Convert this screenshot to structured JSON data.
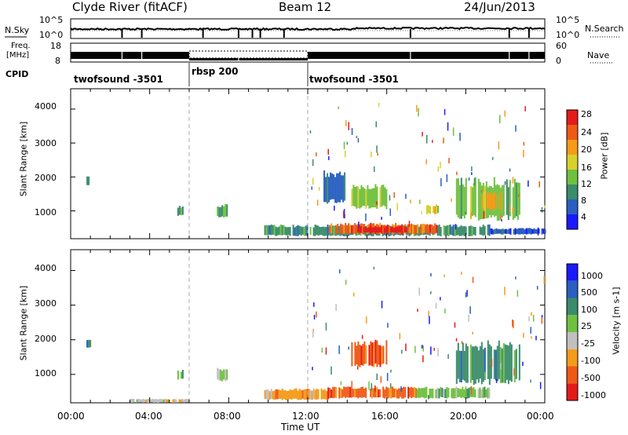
{
  "header": {
    "station": "Clyde River (fitACF)",
    "beam": "Beam 12",
    "date": "24/Jun/2013"
  },
  "colors": {
    "power_scale": [
      "#1a1aff",
      "#2a5fc0",
      "#3a8c6a",
      "#70c040",
      "#d7d12a",
      "#f59b1a",
      "#ee5a16",
      "#e41b1b"
    ],
    "velocity_scale": [
      "#e41b1b",
      "#ee5a16",
      "#f59b1a",
      "#c0c0c0",
      "#70c040",
      "#3a8c6a",
      "#2a5fc0",
      "#1a1aff"
    ]
  },
  "top_panels": {
    "nsky_label": "N.Sky",
    "nsearch_label": "N.Search",
    "freq_label_1": "Freq.",
    "freq_label_2": "[MHz]",
    "nave_label": "Nave",
    "cpid_label": "CPID",
    "left_ticks_noise": [
      "10^5",
      "10^0"
    ],
    "right_ticks_noise": [
      "10^5",
      "10^0"
    ],
    "left_ticks_freq": [
      "18",
      "8"
    ],
    "right_ticks_nave": [
      "60",
      "0"
    ],
    "cpid_segments": [
      {
        "name": "twofsound -3501",
        "start_h": 0,
        "end_h": 6
      },
      {
        "name": "rbsp 200",
        "start_h": 6,
        "end_h": 12
      },
      {
        "name": "twofsound -3501",
        "start_h": 12,
        "end_h": 24
      }
    ]
  },
  "chart_data": [
    {
      "type": "heatmap",
      "name": "Power",
      "ylabel": "Slant Range [km]",
      "colorbar_label": "Power [dB]",
      "colorbar_ticks": [
        "28",
        "24",
        "20",
        "16",
        "12",
        "8",
        "4"
      ],
      "xlim": [
        0,
        24
      ],
      "ylim": [
        180,
        4600
      ],
      "y_ticks": [
        "4000",
        "3000",
        "2000",
        "1000"
      ],
      "features": [
        {
          "t0": 9.8,
          "t1": 21.2,
          "r0": 250,
          "r1": 600,
          "level": 2
        },
        {
          "t0": 13.0,
          "t1": 18.5,
          "r0": 300,
          "r1": 650,
          "level": 6
        },
        {
          "t0": 14.5,
          "t1": 17.0,
          "r0": 350,
          "r1": 550,
          "level": 7
        },
        {
          "t0": 21.2,
          "t1": 24.0,
          "r0": 300,
          "r1": 500,
          "level": 1
        },
        {
          "t0": 0.8,
          "t1": 1.0,
          "r0": 1750,
          "r1": 2050,
          "level": 2
        },
        {
          "t0": 5.4,
          "t1": 5.7,
          "r0": 850,
          "r1": 1150,
          "level": 2
        },
        {
          "t0": 7.4,
          "t1": 7.9,
          "r0": 800,
          "r1": 1200,
          "level": 2
        },
        {
          "t0": 12.8,
          "t1": 13.9,
          "r0": 1200,
          "r1": 2200,
          "level": 1
        },
        {
          "t0": 14.2,
          "t1": 16.0,
          "r0": 1050,
          "r1": 1800,
          "level": 3
        },
        {
          "t0": 18.0,
          "t1": 18.6,
          "r0": 900,
          "r1": 1200,
          "level": 4
        },
        {
          "t0": 19.5,
          "t1": 22.7,
          "r0": 700,
          "r1": 2000,
          "level": 3
        },
        {
          "t0": 20.8,
          "t1": 21.8,
          "r0": 1000,
          "r1": 1600,
          "level": 5
        }
      ]
    },
    {
      "type": "heatmap",
      "name": "Velocity",
      "ylabel": "Slant Range [km]",
      "xlabel": "Time UT",
      "colorbar_label": "Velocity [m s-1]",
      "colorbar_ticks": [
        "1000",
        "500",
        "100",
        "25",
        "-25",
        "-100",
        "-500",
        "-1000"
      ],
      "xlim": [
        0,
        24
      ],
      "ylim": [
        180,
        4600
      ],
      "y_ticks": [
        "4000",
        "3000",
        "2000",
        "1000"
      ],
      "x_ticks": [
        "00:00",
        "04:00",
        "08:00",
        "12:00",
        "16:00",
        "20:00",
        "00:00"
      ],
      "features": [
        {
          "t0": 9.8,
          "t1": 13.0,
          "r0": 250,
          "r1": 600,
          "level": 2
        },
        {
          "t0": 13.0,
          "t1": 17.5,
          "r0": 300,
          "r1": 650,
          "level": 1
        },
        {
          "t0": 17.5,
          "t1": 21.2,
          "r0": 300,
          "r1": 650,
          "level": 4
        },
        {
          "t0": 3.0,
          "t1": 6.0,
          "r0": 180,
          "r1": 300,
          "level": 3
        },
        {
          "t0": 0.8,
          "t1": 1.0,
          "r0": 1750,
          "r1": 2050,
          "level": 6
        },
        {
          "t0": 5.4,
          "t1": 5.7,
          "r0": 850,
          "r1": 1150,
          "level": 4
        },
        {
          "t0": 7.4,
          "t1": 7.9,
          "r0": 800,
          "r1": 1200,
          "level": 4
        },
        {
          "t0": 14.2,
          "t1": 16.0,
          "r0": 1200,
          "r1": 2000,
          "level": 1
        },
        {
          "t0": 19.5,
          "t1": 22.7,
          "r0": 700,
          "r1": 2000,
          "level": 5
        }
      ]
    }
  ]
}
